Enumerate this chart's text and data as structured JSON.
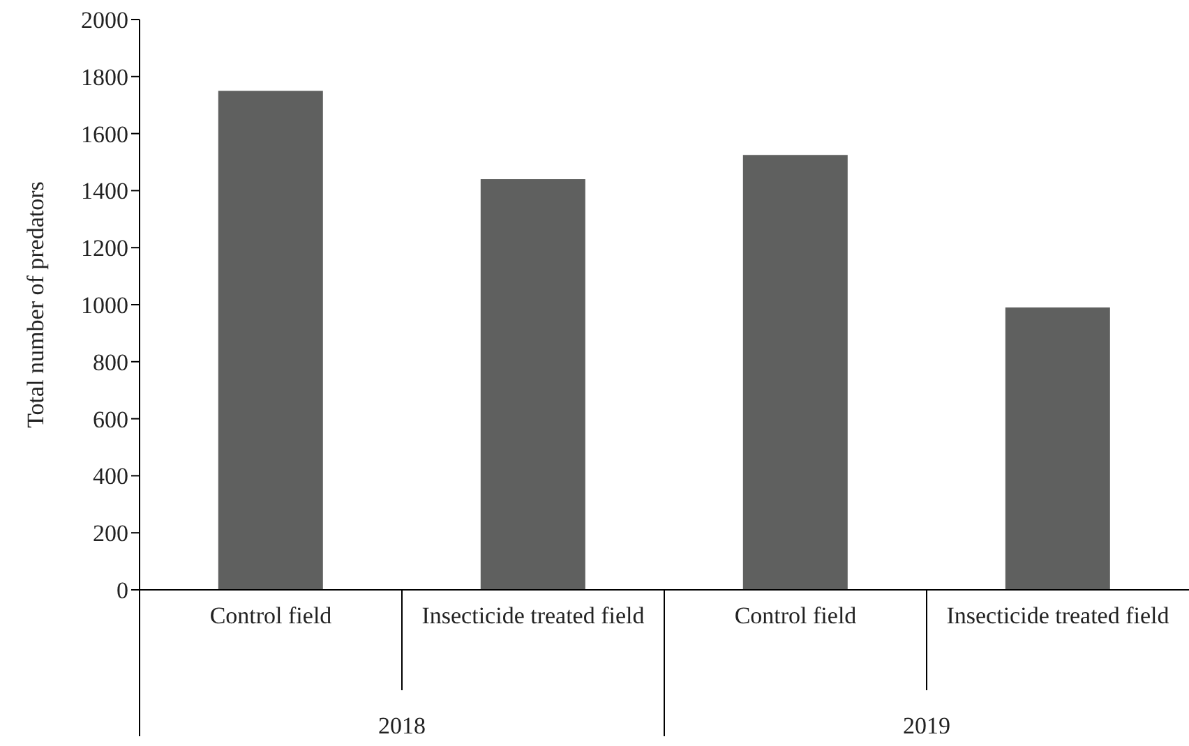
{
  "chart_data": {
    "type": "bar",
    "ylabel": "Total number of predators",
    "categories": [
      "Control field",
      "Insecticide treated field",
      "Control field",
      "Insecticide treated field"
    ],
    "values": [
      1750,
      1440,
      1525,
      990
    ],
    "color": "#5f605f",
    "ylim": [
      0,
      2000
    ],
    "yticks": [
      0,
      200,
      400,
      600,
      800,
      1000,
      1200,
      1400,
      1600,
      1800,
      2000
    ],
    "annotations": [
      "2018",
      "2019"
    ]
  }
}
